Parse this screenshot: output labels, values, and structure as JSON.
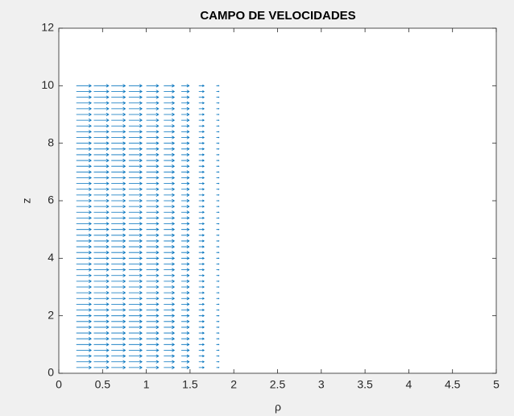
{
  "chart_data": {
    "type": "quiver",
    "title": "CAMPO DE VELOCIDADES",
    "xlabel": "ρ",
    "ylabel": "z",
    "color": "#0072bd",
    "rho": [
      0.2,
      0.4,
      0.6,
      0.8,
      1.0,
      1.2,
      1.4,
      1.6,
      1.8
    ],
    "u": [
      0.17,
      0.17,
      0.16,
      0.15,
      0.14,
      0.12,
      0.09,
      0.06,
      0.03
    ],
    "z": [
      0.2,
      0.4,
      0.6,
      0.8,
      1.0,
      1.2,
      1.4,
      1.6,
      1.8,
      2.0,
      2.2,
      2.4,
      2.6,
      2.8,
      3.0,
      3.2,
      3.4,
      3.6,
      3.8,
      4.0,
      4.2,
      4.4,
      4.6,
      4.8,
      5.0,
      5.2,
      5.4,
      5.6,
      5.8,
      6.0,
      6.2,
      6.4,
      6.6,
      6.8,
      7.0,
      7.2,
      7.4,
      7.6,
      7.8,
      8.0,
      8.2,
      8.4,
      8.6,
      8.8,
      9.0,
      9.2,
      9.4,
      9.6,
      9.8,
      10.0
    ],
    "xlim": [
      0,
      5
    ],
    "xticks": [
      0,
      0.5,
      1,
      1.5,
      2,
      2.5,
      3,
      3.5,
      4,
      4.5,
      5
    ],
    "ylim": [
      0,
      12
    ],
    "yticks": [
      0,
      2,
      4,
      6,
      8,
      10,
      12
    ]
  }
}
